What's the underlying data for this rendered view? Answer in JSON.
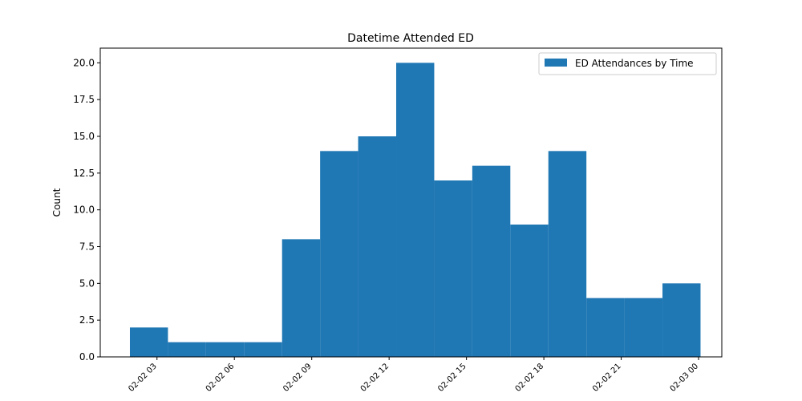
{
  "chart_data": {
    "type": "bar",
    "title": "Datetime Attended ED",
    "xlabel": "",
    "ylabel": "Count",
    "x_tick_labels": [
      "02-02 03",
      "02-02 06",
      "02-02 09",
      "02-02 12",
      "02-02 15",
      "02-02 18",
      "02-02 21",
      "02-03 00"
    ],
    "x_tick_values": [
      3,
      6,
      9,
      12,
      15,
      18,
      21,
      24
    ],
    "y_tick_labels": [
      "0.0",
      "2.5",
      "5.0",
      "7.5",
      "10.0",
      "12.5",
      "15.0",
      "17.5",
      "20.0"
    ],
    "y_tick_values": [
      0,
      2.5,
      5,
      7.5,
      10,
      12.5,
      15,
      17.5,
      20
    ],
    "xlim": [
      0.8,
      24.9
    ],
    "ylim": [
      0,
      21
    ],
    "bin_edges": [
      1.95,
      3.425,
      4.9,
      6.375,
      7.85,
      9.325,
      10.8,
      12.275,
      13.75,
      15.225,
      16.7,
      18.175,
      19.65,
      21.125,
      22.6,
      24.075
    ],
    "series": [
      {
        "name": "ED Attendances by Time",
        "color": "#1f77b4",
        "values": [
          2,
          1,
          1,
          1,
          8,
          14,
          15,
          20,
          12,
          13,
          9,
          14,
          4,
          4,
          5
        ]
      }
    ],
    "legend_position": "top-right",
    "grid": false
  }
}
